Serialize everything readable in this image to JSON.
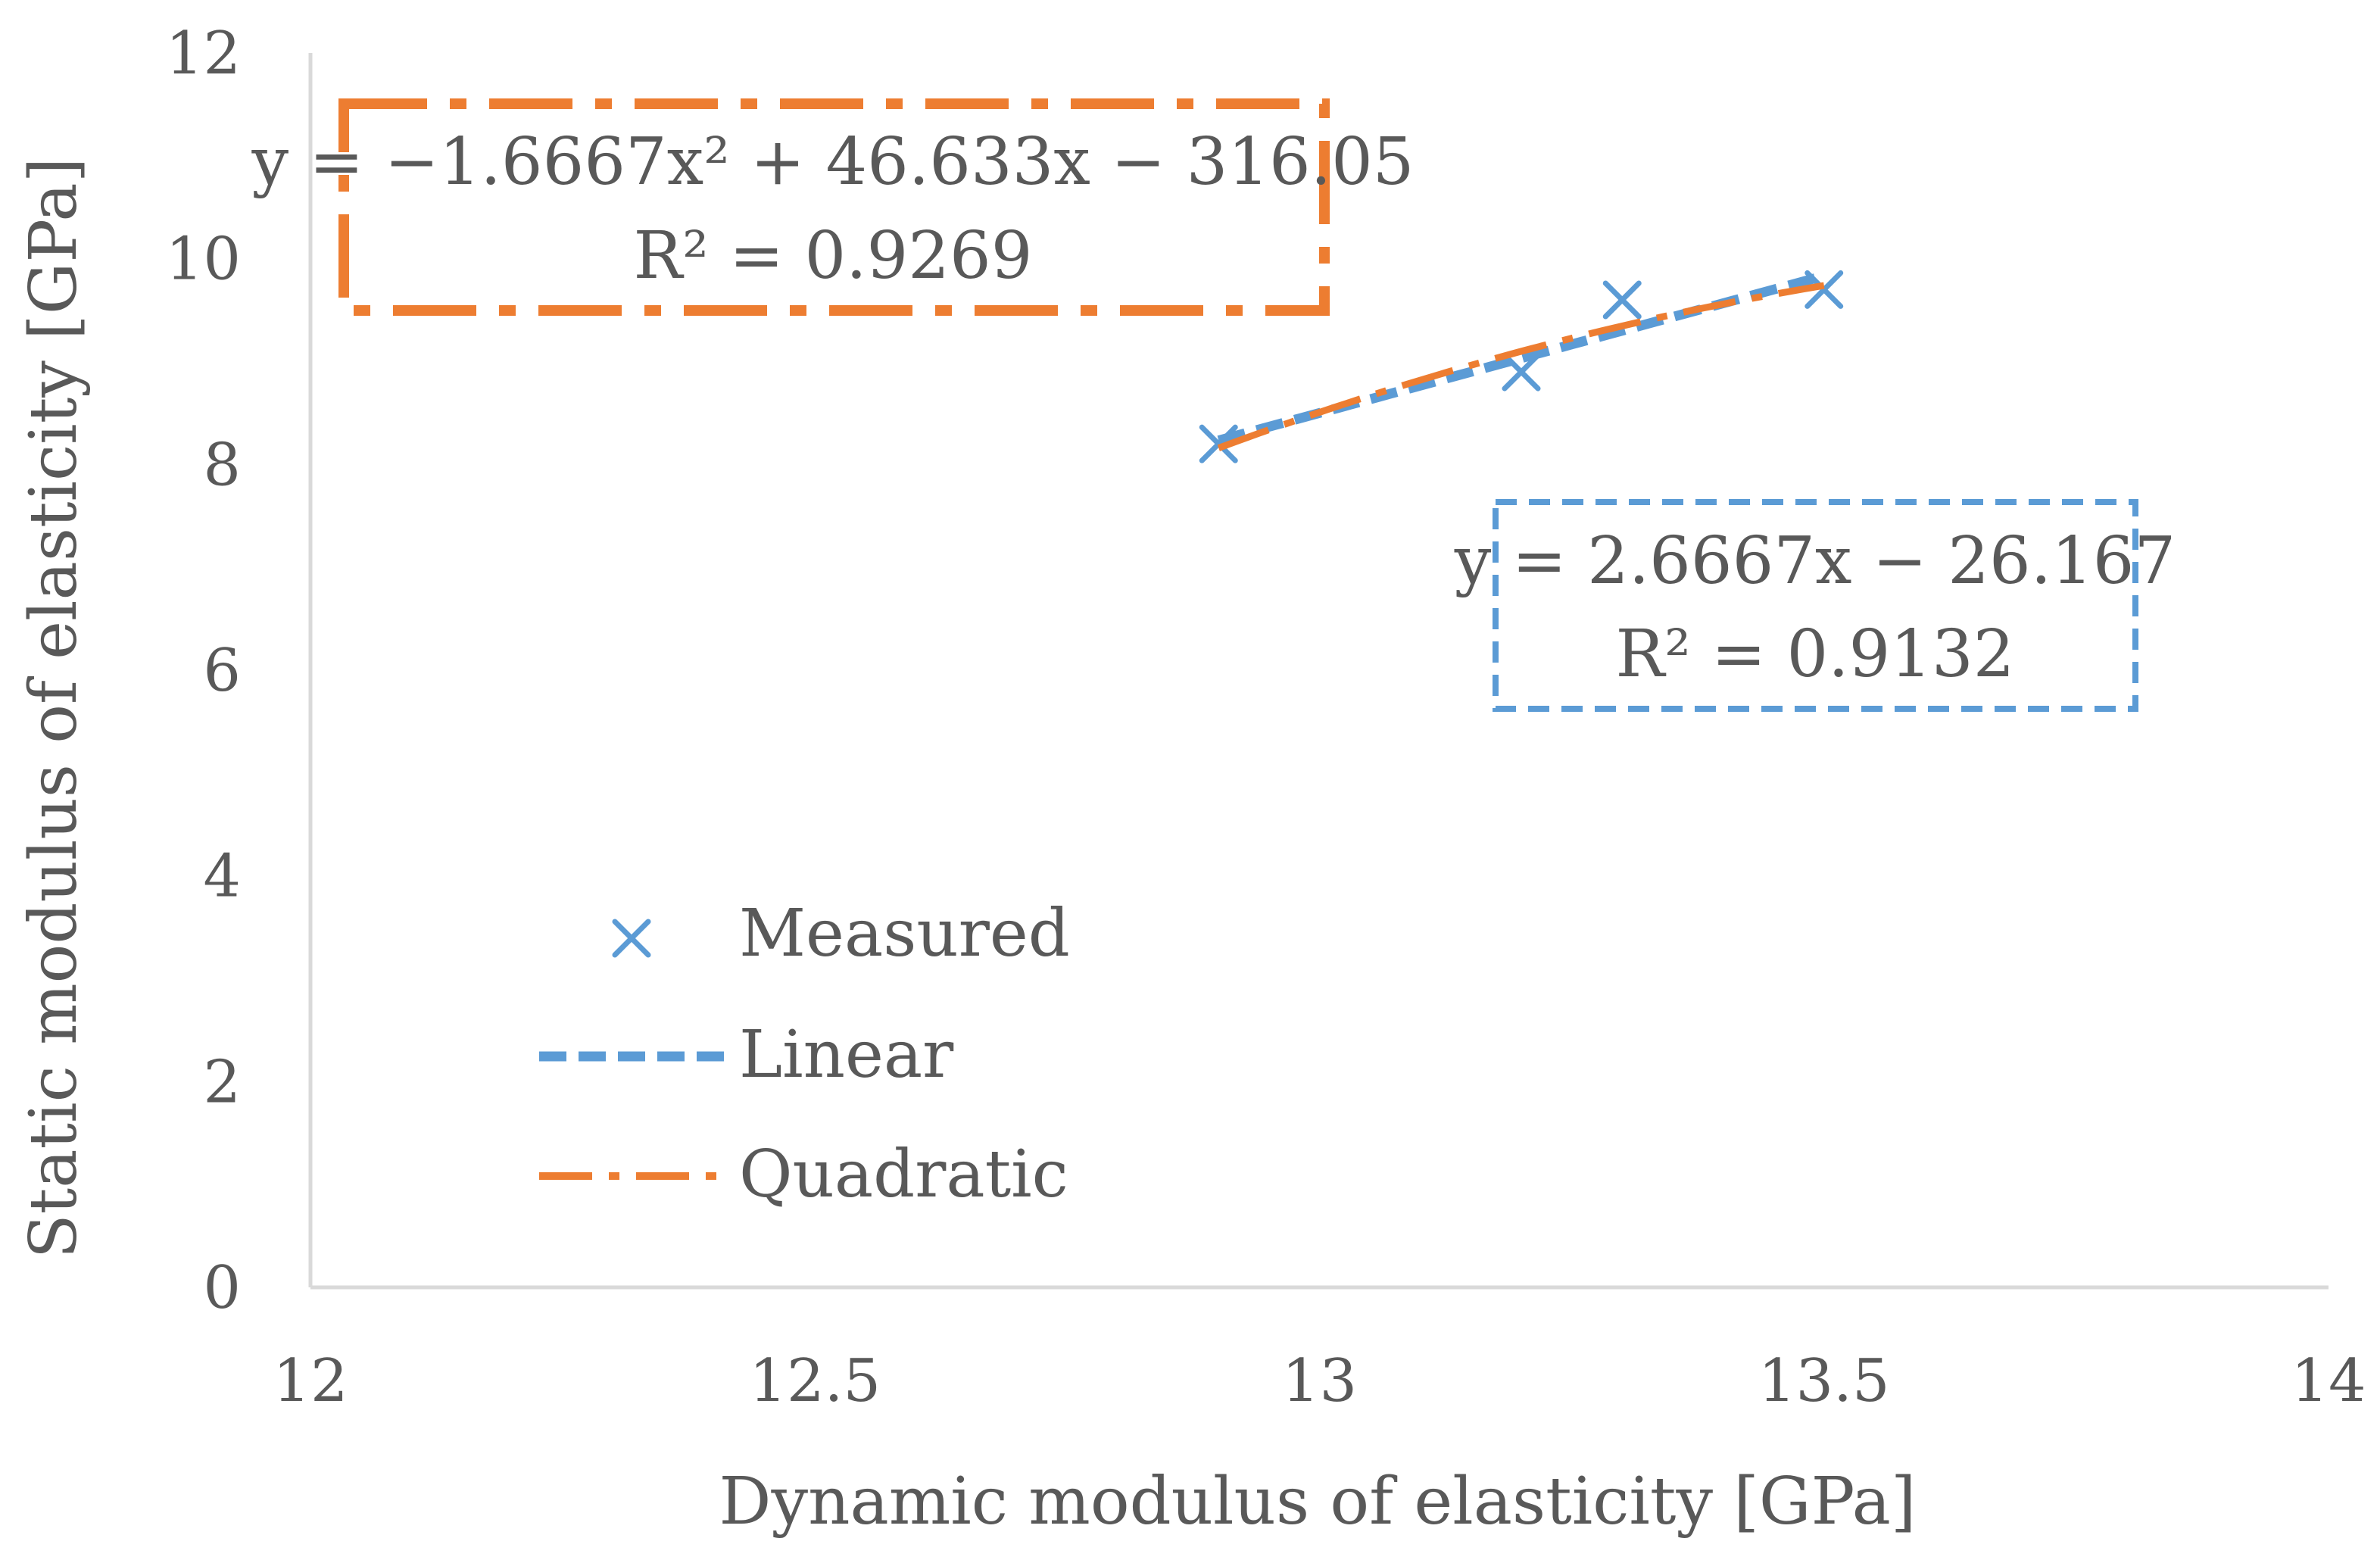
{
  "chart_data": {
    "type": "scatter",
    "xlabel": "Dynamic modulus of elasticity [GPa]",
    "ylabel": "Static modulus of elasticity [GPa]",
    "xlim": [
      12,
      14
    ],
    "ylim": [
      0,
      12
    ],
    "xticks": [
      12,
      12.5,
      13,
      13.5,
      14
    ],
    "xtick_labels": [
      "12",
      "12.5",
      "13",
      "13.5",
      "14"
    ],
    "yticks": [
      0,
      2,
      4,
      6,
      8,
      10,
      12
    ],
    "ytick_labels": [
      "0",
      "2",
      "4",
      "6",
      "8",
      "10",
      "12"
    ],
    "grid": false,
    "legend_position": "bottom-left",
    "series": [
      {
        "name": "Measured",
        "kind": "marker-x",
        "color": "#5B9BD5",
        "x": [
          12.9,
          13.2,
          13.3,
          13.5
        ],
        "y": [
          8.2,
          8.9,
          9.6,
          9.7
        ]
      },
      {
        "name": "Linear",
        "kind": "trendline-linear",
        "color": "#5B9BD5",
        "line_style": "dashed",
        "coefficients": [
          2.6667,
          -26.167
        ],
        "x_range": [
          12.9,
          13.5
        ],
        "equation": "y = 2.6667x − 26.167",
        "r_squared": "R² = 0.9132"
      },
      {
        "name": "Quadratic",
        "kind": "trendline-quadratic",
        "color": "#ED7D31",
        "line_style": "dash-dot",
        "coefficients": [
          -1.6667,
          46.633,
          -316.05
        ],
        "x_range": [
          12.9,
          13.5
        ],
        "equation": "y = −1.6667x² + 46.633x − 316.05",
        "r_squared": "R² = 0.9269"
      }
    ]
  }
}
